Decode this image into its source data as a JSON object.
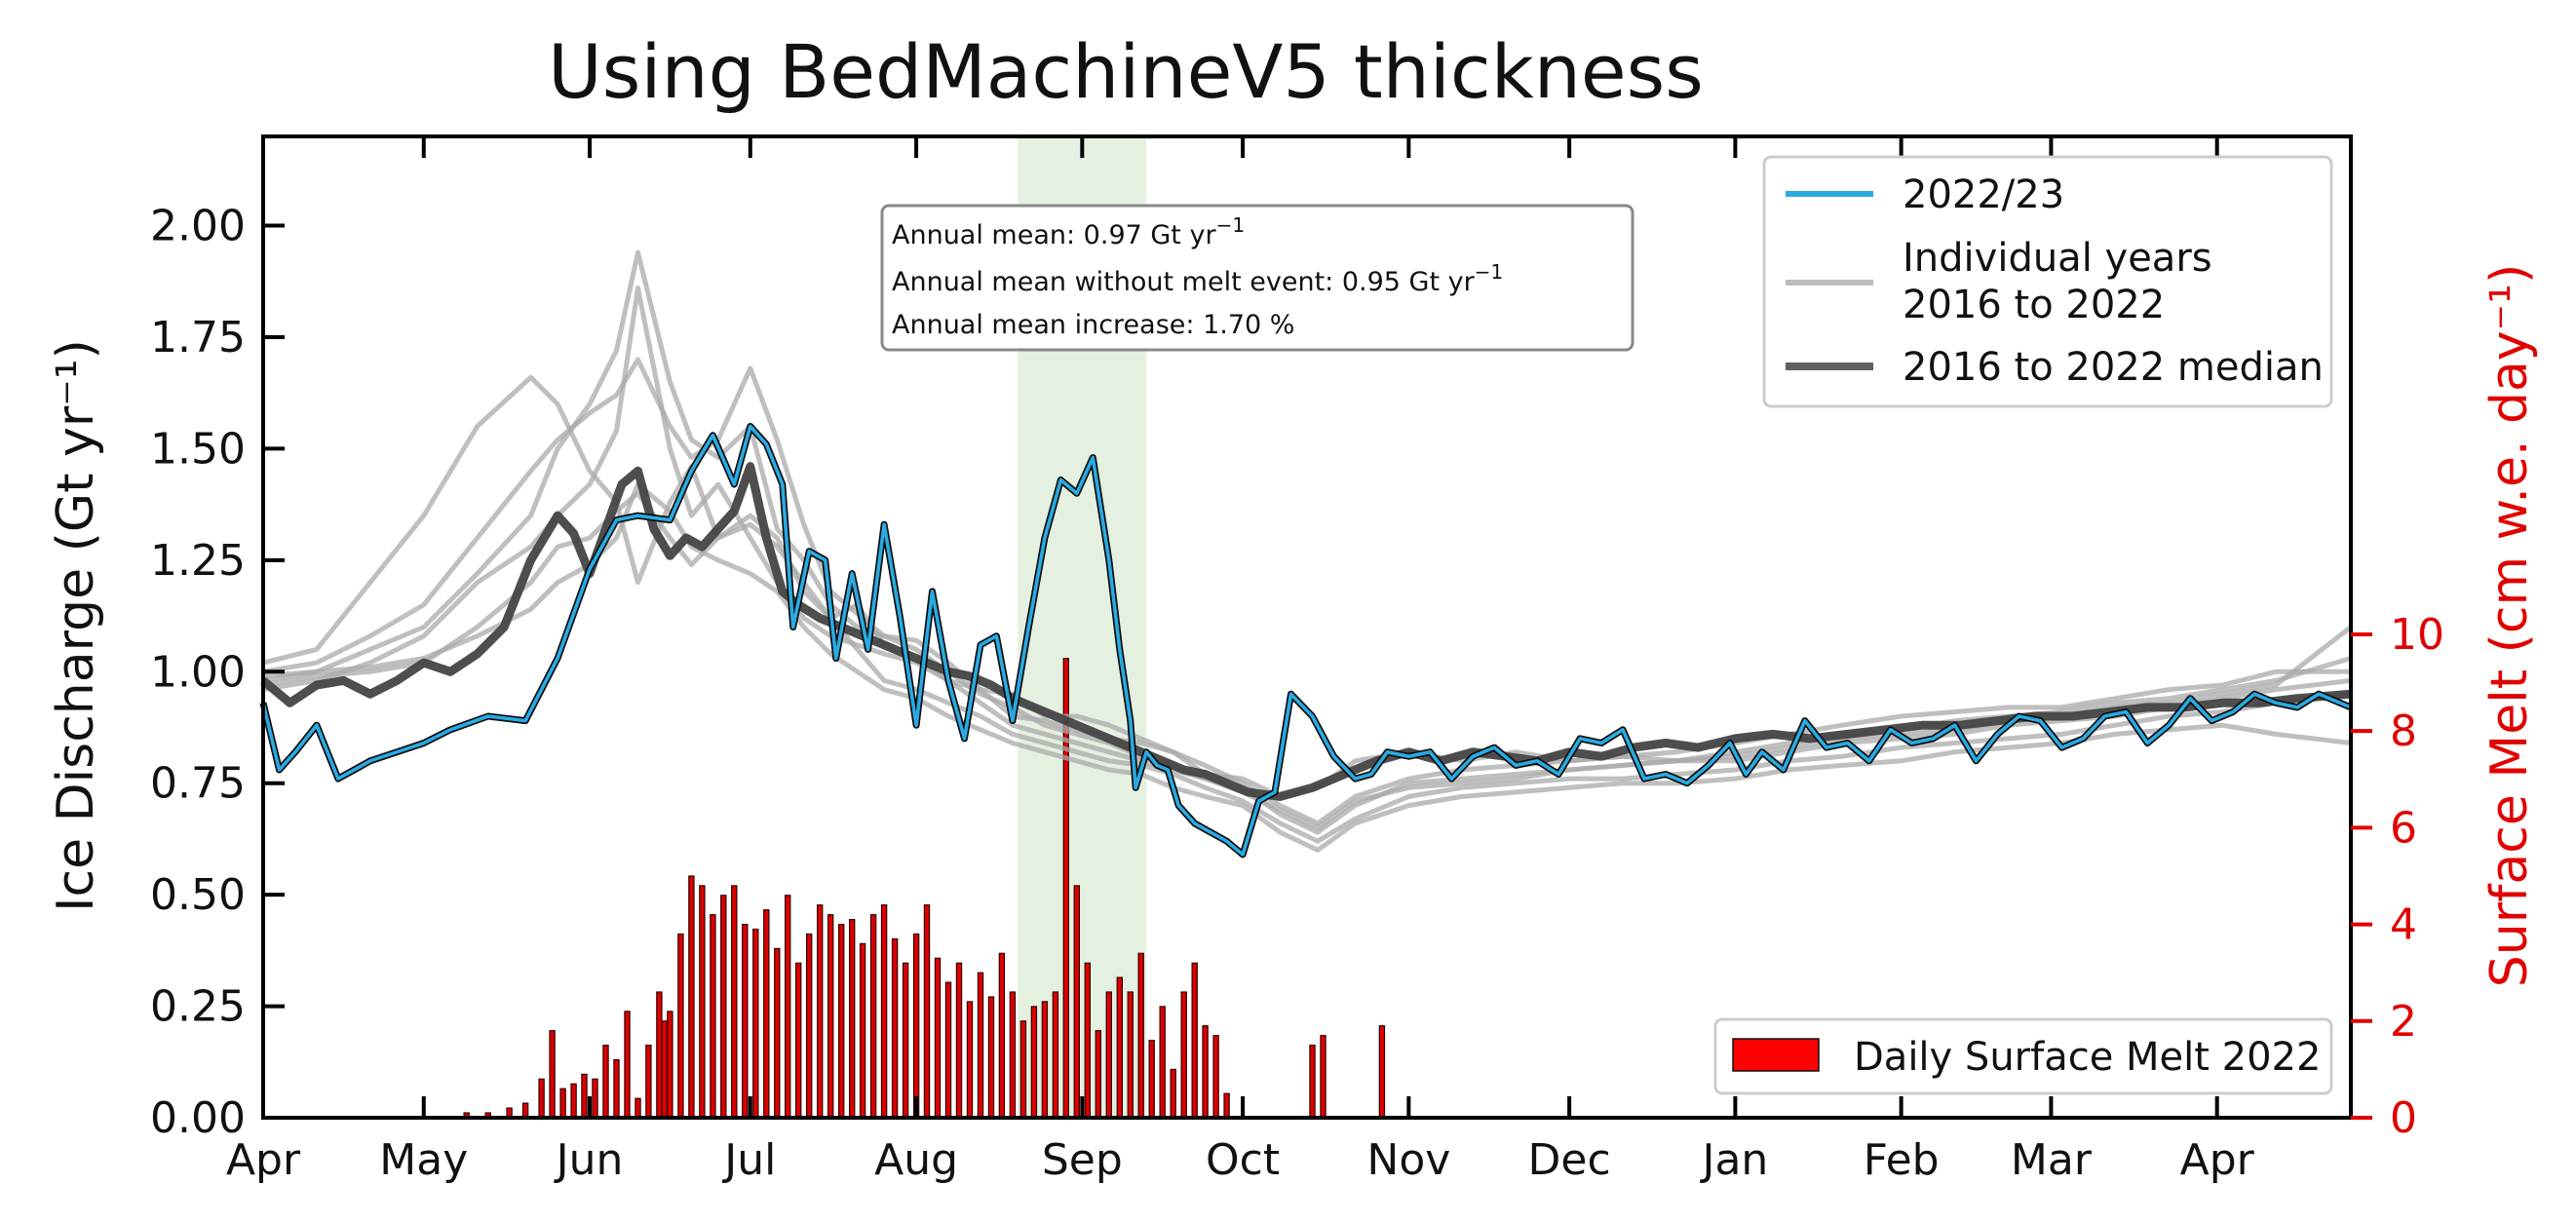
{
  "chart_data": {
    "type": "line",
    "title": "Using BedMachineV5 thickness",
    "ylabel": "Ice Discharge (Gt yr⁻¹)",
    "y2label": "Surface Melt (cm w.e. day⁻¹)",
    "ylim": [
      0,
      2.2
    ],
    "y2lim": [
      0,
      20.3
    ],
    "yticks": [
      "0.00",
      "0.25",
      "0.50",
      "0.75",
      "1.00",
      "1.25",
      "1.50",
      "1.75",
      "2.00"
    ],
    "y2ticks": [
      "0",
      "2",
      "4",
      "6",
      "8",
      "10"
    ],
    "xlim": [
      0,
      390
    ],
    "xticks": [
      {
        "label": "Apr",
        "day": 0
      },
      {
        "label": "May",
        "day": 30
      },
      {
        "label": "Jun",
        "day": 61
      },
      {
        "label": "Jul",
        "day": 91
      },
      {
        "label": "Aug",
        "day": 122
      },
      {
        "label": "Sep",
        "day": 153
      },
      {
        "label": "Oct",
        "day": 183
      },
      {
        "label": "Nov",
        "day": 214
      },
      {
        "label": "Dec",
        "day": 244
      },
      {
        "label": "Jan",
        "day": 275
      },
      {
        "label": "Feb",
        "day": 306
      },
      {
        "label": "Mar",
        "day": 334
      },
      {
        "label": "Apr",
        "day": 365
      }
    ],
    "shaded_period_days": [
      141,
      165
    ],
    "series": [
      {
        "name": "2022/23",
        "color": "#29aae2",
        "x": [
          0,
          3,
          6,
          10,
          14,
          17,
          20,
          25,
          30,
          35,
          42,
          49,
          55,
          61,
          66,
          70,
          76,
          80,
          84,
          88,
          91,
          94,
          97,
          99,
          102,
          105,
          107,
          110,
          113,
          116,
          119,
          122,
          125,
          128,
          131,
          134,
          137,
          140,
          143,
          146,
          149,
          152,
          155,
          158,
          160,
          162,
          163,
          165,
          167,
          169,
          171,
          174,
          177,
          180,
          183,
          186,
          189,
          192,
          196,
          200,
          204,
          207,
          210,
          214,
          218,
          222,
          226,
          230,
          234,
          238,
          242,
          246,
          250,
          254,
          258,
          262,
          266,
          270,
          274,
          277,
          280,
          284,
          288,
          292,
          296,
          300,
          304,
          308,
          312,
          316,
          320,
          324,
          328,
          332,
          336,
          340,
          344,
          348,
          352,
          356,
          360,
          364,
          368,
          372,
          376,
          380,
          384,
          390
        ],
        "y": [
          0.93,
          0.78,
          0.82,
          0.88,
          0.76,
          0.78,
          0.8,
          0.82,
          0.84,
          0.87,
          0.9,
          0.89,
          1.03,
          1.23,
          1.34,
          1.35,
          1.34,
          1.45,
          1.53,
          1.42,
          1.55,
          1.51,
          1.42,
          1.1,
          1.27,
          1.25,
          1.03,
          1.22,
          1.05,
          1.33,
          1.12,
          0.88,
          1.18,
          0.98,
          0.85,
          1.06,
          1.08,
          0.89,
          1.1,
          1.3,
          1.43,
          1.4,
          1.48,
          1.25,
          1.05,
          0.89,
          0.74,
          0.82,
          0.79,
          0.78,
          0.7,
          0.66,
          0.64,
          0.62,
          0.59,
          0.71,
          0.73,
          0.95,
          0.9,
          0.81,
          0.76,
          0.77,
          0.82,
          0.81,
          0.82,
          0.76,
          0.81,
          0.83,
          0.79,
          0.8,
          0.77,
          0.85,
          0.84,
          0.87,
          0.76,
          0.77,
          0.75,
          0.79,
          0.84,
          0.77,
          0.82,
          0.78,
          0.89,
          0.83,
          0.84,
          0.8,
          0.87,
          0.84,
          0.85,
          0.88,
          0.8,
          0.86,
          0.9,
          0.89,
          0.83,
          0.85,
          0.9,
          0.91,
          0.84,
          0.88,
          0.94,
          0.89,
          0.91,
          0.95,
          0.93,
          0.92,
          0.95,
          0.92
        ]
      },
      {
        "name": "Individual years\n2016 to 2022",
        "color": "#a9a9a9",
        "x": [
          0,
          10,
          20,
          30,
          40,
          50,
          55,
          61,
          66,
          70,
          76,
          80,
          85,
          91,
          96,
          101,
          106,
          111,
          116,
          122,
          128,
          134,
          140,
          146,
          152,
          158,
          164,
          170,
          176,
          183,
          190,
          197,
          204,
          214,
          224,
          234,
          244,
          254,
          264,
          275,
          285,
          295,
          306,
          316,
          326,
          336,
          346,
          356,
          366,
          376,
          390
        ],
        "y": [
          [
            1.02,
            1.05,
            1.2,
            1.35,
            1.55,
            1.66,
            1.6,
            1.45,
            1.38,
            1.2,
            1.38,
            1.46,
            1.3,
            1.33,
            1.28,
            1.2,
            1.12,
            1.15,
            1.06,
            1.03,
            0.98,
            0.96,
            0.95,
            0.9,
            0.9,
            0.88,
            0.85,
            0.82,
            0.77,
            0.76,
            0.72,
            0.74,
            0.8,
            0.82,
            0.8,
            0.82,
            0.8,
            0.81,
            0.82,
            0.84,
            0.86,
            0.88,
            0.9,
            0.91,
            0.92,
            0.92,
            0.94,
            0.96,
            0.97,
            1.0,
            1.0
          ],
          [
            0.98,
            1.0,
            1.05,
            1.1,
            1.22,
            1.35,
            1.5,
            1.6,
            1.72,
            1.94,
            1.65,
            1.52,
            1.48,
            1.55,
            1.32,
            1.25,
            1.15,
            1.1,
            1.08,
            1.07,
            1.02,
            0.96,
            0.9,
            0.89,
            0.87,
            0.85,
            0.84,
            0.82,
            0.79,
            0.75,
            0.7,
            0.66,
            0.72,
            0.76,
            0.78,
            0.79,
            0.8,
            0.81,
            0.8,
            0.82,
            0.84,
            0.86,
            0.87,
            0.89,
            0.9,
            0.91,
            0.93,
            0.94,
            0.96,
            0.98,
            1.03
          ],
          [
            0.96,
            0.98,
            1.02,
            1.08,
            1.2,
            1.28,
            1.35,
            1.42,
            1.54,
            1.86,
            1.5,
            1.35,
            1.42,
            1.3,
            1.2,
            1.12,
            1.08,
            1.06,
            1.04,
            1.02,
            0.98,
            0.93,
            0.88,
            0.86,
            0.84,
            0.82,
            0.8,
            0.78,
            0.76,
            0.74,
            0.68,
            0.64,
            0.7,
            0.75,
            0.76,
            0.77,
            0.78,
            0.79,
            0.8,
            0.8,
            0.82,
            0.84,
            0.85,
            0.86,
            0.88,
            0.89,
            0.9,
            0.92,
            0.94,
            0.96,
            0.98
          ],
          [
            0.97,
            0.99,
            1.0,
            1.02,
            1.1,
            1.2,
            1.28,
            1.3,
            1.36,
            1.4,
            1.3,
            1.24,
            1.3,
            1.35,
            1.3,
            1.18,
            1.12,
            1.05,
            0.98,
            0.96,
            0.93,
            0.9,
            0.86,
            0.84,
            0.82,
            0.8,
            0.79,
            0.77,
            0.74,
            0.71,
            0.66,
            0.62,
            0.67,
            0.72,
            0.74,
            0.75,
            0.76,
            0.76,
            0.77,
            0.78,
            0.8,
            0.81,
            0.83,
            0.84,
            0.85,
            0.86,
            0.88,
            0.9,
            0.91,
            0.93,
            0.95
          ],
          [
            0.99,
            1.0,
            1.01,
            1.03,
            1.08,
            1.14,
            1.2,
            1.24,
            1.3,
            1.42,
            1.36,
            1.28,
            1.25,
            1.22,
            1.18,
            1.1,
            1.04,
            1.0,
            0.96,
            0.94,
            0.9,
            0.87,
            0.84,
            0.82,
            0.8,
            0.78,
            0.77,
            0.74,
            0.72,
            0.7,
            0.64,
            0.6,
            0.66,
            0.7,
            0.72,
            0.73,
            0.74,
            0.75,
            0.75,
            0.76,
            0.78,
            0.79,
            0.8,
            0.82,
            0.83,
            0.84,
            0.86,
            0.87,
            0.88,
            0.86,
            0.84
          ],
          [
            1.0,
            1.02,
            1.08,
            1.15,
            1.3,
            1.45,
            1.52,
            1.58,
            1.62,
            1.7,
            1.55,
            1.48,
            1.52,
            1.68,
            1.52,
            1.33,
            1.18,
            1.13,
            1.08,
            1.05,
            1.0,
            0.95,
            0.92,
            0.88,
            0.86,
            0.84,
            0.81,
            0.79,
            0.76,
            0.73,
            0.69,
            0.65,
            0.71,
            0.74,
            0.75,
            0.76,
            0.78,
            0.79,
            0.8,
            0.81,
            0.83,
            0.85,
            0.86,
            0.87,
            0.89,
            0.9,
            0.92,
            0.93,
            0.95,
            0.97,
            1.1
          ]
        ]
      },
      {
        "name": "2016 to 2022 median",
        "color": "#454545",
        "x": [
          0,
          5,
          10,
          15,
          20,
          25,
          30,
          35,
          40,
          45,
          50,
          55,
          58,
          61,
          64,
          67,
          70,
          73,
          76,
          79,
          82,
          85,
          88,
          91,
          94,
          97,
          100,
          104,
          108,
          112,
          116,
          120,
          124,
          128,
          132,
          136,
          140,
          144,
          148,
          152,
          156,
          160,
          164,
          168,
          172,
          176,
          180,
          184,
          190,
          196,
          202,
          208,
          214,
          220,
          226,
          232,
          238,
          244,
          250,
          256,
          262,
          268,
          275,
          282,
          289,
          296,
          303,
          310,
          317,
          324,
          331,
          338,
          345,
          352,
          359,
          366,
          373,
          380,
          390
        ],
        "y": [
          0.98,
          0.93,
          0.97,
          0.98,
          0.95,
          0.98,
          1.02,
          1.0,
          1.04,
          1.1,
          1.25,
          1.35,
          1.31,
          1.22,
          1.32,
          1.42,
          1.45,
          1.32,
          1.26,
          1.3,
          1.28,
          1.32,
          1.36,
          1.46,
          1.3,
          1.18,
          1.15,
          1.12,
          1.1,
          1.08,
          1.06,
          1.04,
          1.02,
          1.0,
          0.99,
          0.97,
          0.94,
          0.92,
          0.9,
          0.88,
          0.86,
          0.84,
          0.82,
          0.8,
          0.78,
          0.77,
          0.75,
          0.73,
          0.72,
          0.74,
          0.77,
          0.8,
          0.82,
          0.8,
          0.82,
          0.81,
          0.8,
          0.82,
          0.81,
          0.83,
          0.84,
          0.83,
          0.85,
          0.86,
          0.85,
          0.86,
          0.87,
          0.88,
          0.88,
          0.89,
          0.9,
          0.9,
          0.91,
          0.92,
          0.92,
          0.93,
          0.93,
          0.94,
          0.95
        ]
      }
    ],
    "bars": {
      "name": "Daily Surface Melt 2022",
      "color": "#dd0000",
      "axis": "y2",
      "x": [
        38,
        42,
        46,
        49,
        52,
        54,
        56,
        58,
        60,
        62,
        64,
        66,
        68,
        70,
        72,
        74,
        75,
        76,
        78,
        80,
        82,
        84,
        86,
        88,
        90,
        92,
        94,
        96,
        98,
        100,
        102,
        104,
        106,
        108,
        110,
        112,
        114,
        116,
        118,
        120,
        122,
        124,
        126,
        128,
        130,
        132,
        134,
        136,
        138,
        140,
        142,
        144,
        146,
        148,
        150,
        152,
        154,
        156,
        158,
        160,
        162,
        164,
        166,
        168,
        170,
        172,
        174,
        176,
        178,
        180,
        196,
        198,
        209
      ],
      "values": [
        0.1,
        0.1,
        0.2,
        0.3,
        0.8,
        1.8,
        0.6,
        0.7,
        0.9,
        0.8,
        1.5,
        1.2,
        2.2,
        0.4,
        1.5,
        2.6,
        2.0,
        2.2,
        3.8,
        5.0,
        4.8,
        4.2,
        4.6,
        4.8,
        4.0,
        3.9,
        4.3,
        3.5,
        4.6,
        3.2,
        3.8,
        4.4,
        4.2,
        4.0,
        4.1,
        3.6,
        4.2,
        4.4,
        3.7,
        3.2,
        3.8,
        4.4,
        3.3,
        2.8,
        3.2,
        2.4,
        3.0,
        2.5,
        3.4,
        2.6,
        2.0,
        2.3,
        2.4,
        2.6,
        9.5,
        4.8,
        3.2,
        1.8,
        2.6,
        2.9,
        2.6,
        3.4,
        1.6,
        2.3,
        1.0,
        2.6,
        3.2,
        1.9,
        1.7,
        0.5,
        1.5,
        1.7,
        1.9
      ]
    },
    "legend_lines": [
      {
        "label": "2022/23",
        "color": "#29aae2"
      },
      {
        "label": "Individual years",
        "label2": "2016 to 2022",
        "color": "#bdbdbd"
      },
      {
        "label": "2016 to 2022 median",
        "color": "#5f5f5f"
      }
    ],
    "legend_lines_position": "top-right",
    "legend_bars": {
      "label": "Daily Surface Melt 2022",
      "color": "#ff0000"
    },
    "legend_bars_position": "bottom-right",
    "annotation": {
      "line1_prefix": "Annual mean: 0.97  Gt yr",
      "line2_prefix": "Annual mean without melt event: 0.95  Gt yr",
      "exponent": "−1",
      "line3": "Annual mean increase: 1.70 %"
    }
  }
}
